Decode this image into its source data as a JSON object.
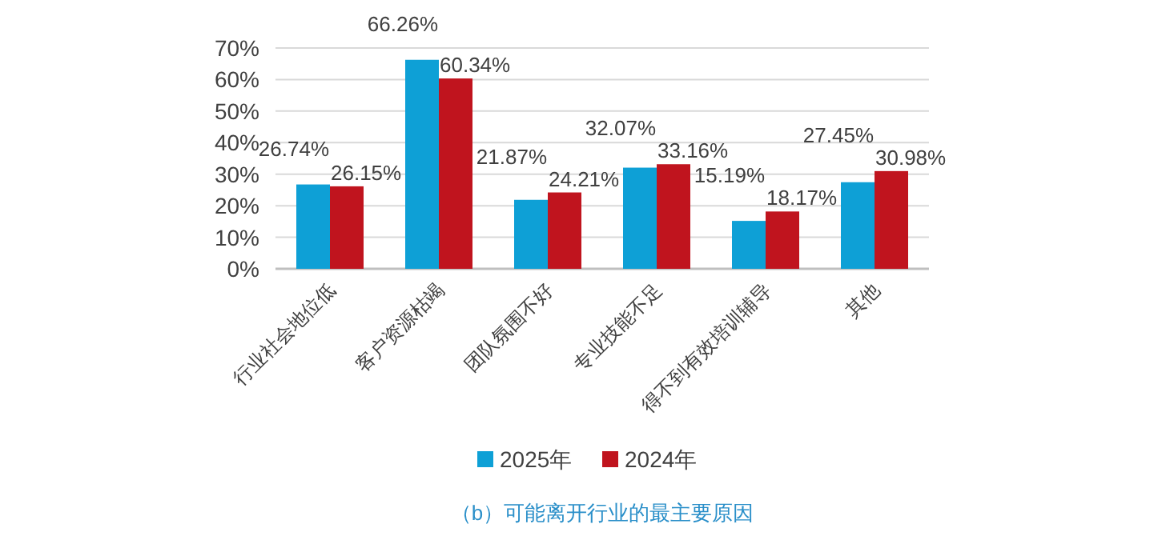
{
  "chart_data": {
    "type": "bar",
    "categories": [
      "行业社会地位低",
      "客户资源枯竭",
      "团队氛围不好",
      "专业技能不足",
      "得不到有效培训辅导",
      "其他"
    ],
    "series": [
      {
        "name": "2025年",
        "color": "#0ea0d6",
        "values": [
          26.74,
          66.26,
          21.87,
          32.07,
          15.19,
          27.45
        ],
        "value_labels": [
          "26.74%",
          "66.26%",
          "21.87%",
          "32.07%",
          "15.19%",
          "27.45%"
        ]
      },
      {
        "name": "2024年",
        "color": "#c0141e",
        "values": [
          26.15,
          60.34,
          24.21,
          33.16,
          18.17,
          30.98
        ],
        "value_labels": [
          "26.15%",
          "60.34%",
          "24.21%",
          "33.16%",
          "18.17%",
          "30.98%"
        ]
      }
    ],
    "ylim": [
      0,
      70
    ],
    "yticks": [
      {
        "value": 0,
        "label": "0%"
      },
      {
        "value": 10,
        "label": "10%"
      },
      {
        "value": 20,
        "label": "20%"
      },
      {
        "value": 30,
        "label": "30%"
      },
      {
        "value": 40,
        "label": "40%"
      },
      {
        "value": 50,
        "label": "50%"
      },
      {
        "value": 60,
        "label": "60%"
      },
      {
        "value": 70,
        "label": "70%"
      }
    ],
    "grid": "y",
    "legend": "bottom",
    "annotations": [
      "（b）可能离开行业的最主要原因"
    ]
  }
}
